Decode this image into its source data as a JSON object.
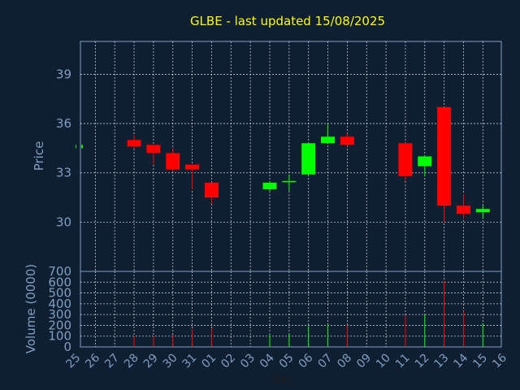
{
  "chart_data": {
    "type": "candlestick",
    "title": "GLBE - last updated 15/08/2025",
    "xlabel": "Day",
    "price_axis": {
      "label": "Price",
      "range": [
        27.0,
        41.0
      ],
      "ticks": [
        30,
        33,
        36,
        39
      ],
      "tick_labels": [
        "30",
        "33",
        "36",
        "39"
      ]
    },
    "volume_axis": {
      "label": "Volume (0000)",
      "range": [
        0,
        700
      ],
      "ticks": [
        0,
        100,
        200,
        300,
        400,
        500,
        600,
        700
      ],
      "tick_labels": [
        "0",
        "100",
        "200",
        "300",
        "400",
        "500",
        "600",
        "700"
      ]
    },
    "x_ticks": [
      "25",
      "26",
      "27",
      "28",
      "29",
      "30",
      "31",
      "01",
      "02",
      "03",
      "04",
      "05",
      "06",
      "07",
      "08",
      "09",
      "10",
      "11",
      "12",
      "13",
      "14",
      "15",
      "16"
    ],
    "grid": true,
    "colors": {
      "background": "#0f1f32",
      "up": "#00ff00",
      "down": "#ff0000",
      "title": "#ffff00",
      "axis_text": "#7f9fbf",
      "frame": "#7f9fbf",
      "grid": "#ffffff"
    },
    "candles": [
      {
        "day": "25",
        "open": 34.5,
        "close": 34.7,
        "high": 34.7,
        "low": 34.5,
        "volume": 0
      },
      {
        "day": "28",
        "open": 35.0,
        "close": 34.6,
        "high": 35.3,
        "low": 34.5,
        "volume": 100
      },
      {
        "day": "29",
        "open": 34.7,
        "close": 34.2,
        "high": 34.7,
        "low": 33.5,
        "volume": 100
      },
      {
        "day": "30",
        "open": 34.2,
        "close": 33.2,
        "high": 34.5,
        "low": 33.1,
        "volume": 110
      },
      {
        "day": "31",
        "open": 33.5,
        "close": 33.2,
        "high": 33.5,
        "low": 32.0,
        "volume": 160
      },
      {
        "day": "01",
        "open": 32.4,
        "close": 31.5,
        "high": 32.4,
        "low": 31.1,
        "volume": 170
      },
      {
        "day": "04",
        "open": 32.0,
        "close": 32.4,
        "high": 32.5,
        "low": 31.9,
        "volume": 110
      },
      {
        "day": "05",
        "open": 32.5,
        "close": 32.5,
        "high": 32.9,
        "low": 31.9,
        "volume": 120
      },
      {
        "day": "06",
        "open": 32.9,
        "close": 34.8,
        "high": 34.8,
        "low": 32.9,
        "volume": 190
      },
      {
        "day": "07",
        "open": 34.8,
        "close": 35.2,
        "high": 36.0,
        "low": 34.8,
        "volume": 210
      },
      {
        "day": "08",
        "open": 35.2,
        "close": 34.7,
        "high": 35.4,
        "low": 34.6,
        "volume": 200
      },
      {
        "day": "11",
        "open": 34.8,
        "close": 32.8,
        "high": 34.8,
        "low": 32.5,
        "volume": 290
      },
      {
        "day": "12",
        "open": 33.4,
        "close": 34.0,
        "high": 34.0,
        "low": 32.8,
        "volume": 300
      },
      {
        "day": "13",
        "open": 37.0,
        "close": 31.0,
        "high": 37.0,
        "low": 30.0,
        "volume": 610
      },
      {
        "day": "14",
        "open": 31.0,
        "close": 30.5,
        "high": 31.7,
        "low": 30.2,
        "volume": 330
      },
      {
        "day": "15",
        "open": 30.6,
        "close": 30.8,
        "high": 31.0,
        "low": 30.2,
        "volume": 220
      }
    ]
  }
}
